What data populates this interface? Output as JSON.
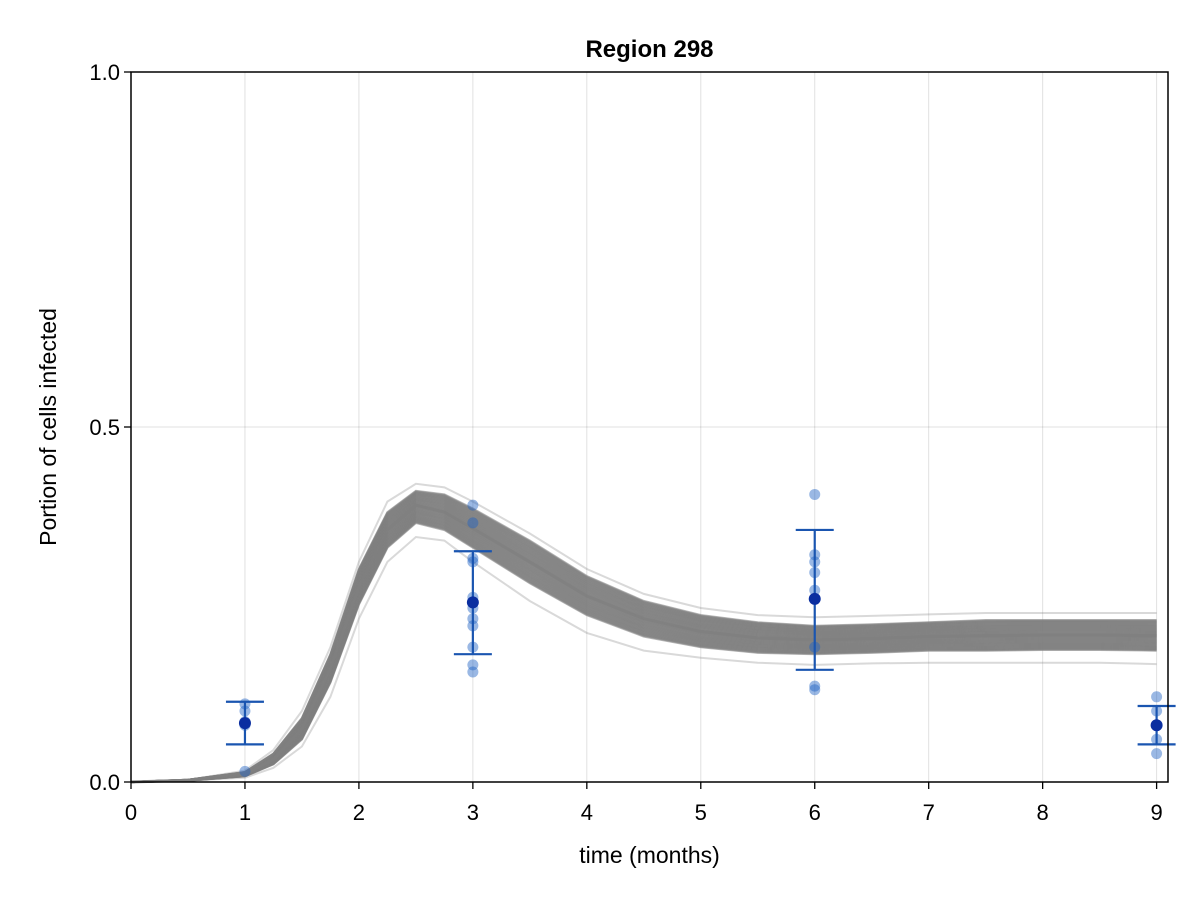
{
  "chart_data": {
    "type": "line",
    "title": "Region 298",
    "xlabel": "time (months)",
    "ylabel": "Portion of cells infected",
    "xlim": [
      0,
      9.1
    ],
    "ylim": [
      0,
      1
    ],
    "x_ticks": [
      "0",
      "1",
      "2",
      "3",
      "4",
      "5",
      "6",
      "7",
      "8",
      "9"
    ],
    "y_ticks": [
      "0.0",
      "0.5",
      "1.0"
    ],
    "grid": true,
    "legend": "none",
    "colors": {
      "simulation": "#808080",
      "observation": "#1f62c4",
      "mean": "#0a2ea0",
      "errorbar": "#1a55b0"
    },
    "simulation_band": {
      "x": [
        0,
        0.5,
        1.0,
        1.25,
        1.5,
        1.75,
        2.0,
        2.25,
        2.5,
        2.75,
        3.0,
        3.5,
        4.0,
        4.5,
        5.0,
        5.5,
        6.0,
        6.5,
        7.0,
        7.5,
        8.0,
        8.5,
        9.0
      ],
      "lower": [
        0,
        0.002,
        0.008,
        0.025,
        0.06,
        0.14,
        0.25,
        0.33,
        0.365,
        0.355,
        0.33,
        0.28,
        0.235,
        0.205,
        0.19,
        0.182,
        0.18,
        0.182,
        0.185,
        0.185,
        0.186,
        0.186,
        0.185
      ],
      "upper": [
        0,
        0.003,
        0.014,
        0.04,
        0.09,
        0.18,
        0.3,
        0.38,
        0.41,
        0.405,
        0.385,
        0.34,
        0.29,
        0.255,
        0.235,
        0.225,
        0.22,
        0.222,
        0.225,
        0.228,
        0.228,
        0.228,
        0.228
      ],
      "center": [
        0,
        0.0025,
        0.011,
        0.032,
        0.075,
        0.16,
        0.275,
        0.355,
        0.39,
        0.38,
        0.357,
        0.31,
        0.262,
        0.23,
        0.212,
        0.203,
        0.2,
        0.202,
        0.205,
        0.206,
        0.207,
        0.207,
        0.206
      ],
      "outlier_low": [
        0,
        0.002,
        0.006,
        0.02,
        0.05,
        0.12,
        0.23,
        0.31,
        0.345,
        0.34,
        0.31,
        0.255,
        0.21,
        0.185,
        0.175,
        0.168,
        0.165,
        0.167,
        0.168,
        0.168,
        0.168,
        0.168,
        0.166
      ],
      "outlier_high": [
        0,
        0.003,
        0.016,
        0.045,
        0.1,
        0.19,
        0.31,
        0.395,
        0.42,
        0.415,
        0.395,
        0.35,
        0.3,
        0.265,
        0.245,
        0.235,
        0.232,
        0.234,
        0.236,
        0.238,
        0.238,
        0.238,
        0.238
      ]
    },
    "observations": [
      {
        "x": 1,
        "values": [
          0.015,
          0.08,
          0.085,
          0.1,
          0.11
        ]
      },
      {
        "x": 3,
        "values": [
          0.155,
          0.165,
          0.19,
          0.22,
          0.23,
          0.245,
          0.26,
          0.31,
          0.315,
          0.365,
          0.39
        ]
      },
      {
        "x": 6,
        "values": [
          0.13,
          0.135,
          0.19,
          0.27,
          0.295,
          0.31,
          0.32,
          0.405
        ]
      },
      {
        "x": 9,
        "values": [
          0.04,
          0.06,
          0.1,
          0.12
        ]
      }
    ],
    "means": [
      {
        "x": 1,
        "y": 0.083,
        "err_low": 0.053,
        "err_high": 0.113
      },
      {
        "x": 3,
        "y": 0.253,
        "err_low": 0.18,
        "err_high": 0.325
      },
      {
        "x": 6,
        "y": 0.258,
        "err_low": 0.158,
        "err_high": 0.355
      },
      {
        "x": 9,
        "y": 0.08,
        "err_low": 0.053,
        "err_high": 0.107
      }
    ]
  }
}
